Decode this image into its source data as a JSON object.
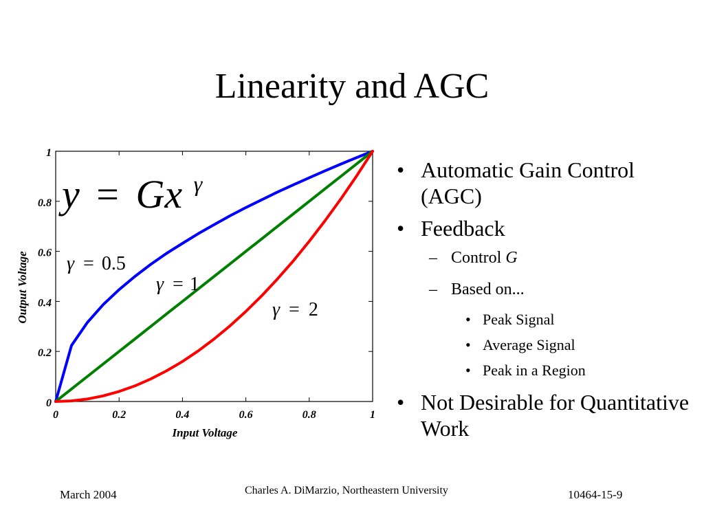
{
  "slide": {
    "title": "Linearity and AGC",
    "bullets": [
      {
        "level": 1,
        "text": "Automatic Gain Control (AGC)"
      },
      {
        "level": 1,
        "text": "Feedback"
      },
      {
        "level": 2,
        "text": "Control ",
        "italic_suffix": "G"
      },
      {
        "level": 2,
        "text": "Based on..."
      },
      {
        "level": 3,
        "text": "Peak Signal"
      },
      {
        "level": 3,
        "text": "Average Signal"
      },
      {
        "level": 3,
        "text": "Peak in a Region"
      },
      {
        "level": 1,
        "text": "Not Desirable for Quantitative Work"
      }
    ],
    "bullet_marks": {
      "level1": "•",
      "level2": "–",
      "level3": "•"
    },
    "footer": {
      "date": "March 2004",
      "author": "Charles A. DiMarzio, Northeastern University",
      "slide_number": "10464-15-9"
    }
  },
  "chart_data": {
    "type": "line",
    "xlabel": "Input Voltage",
    "ylabel": "Output Voltage",
    "xlim": [
      0,
      1
    ],
    "ylim": [
      0,
      1
    ],
    "x_ticks": [
      "0",
      "0.2",
      "0.4",
      "0.6",
      "0.8",
      "1"
    ],
    "y_ticks": [
      "0",
      "0.2",
      "0.4",
      "0.6",
      "0.8",
      "1"
    ],
    "grid": false,
    "formula": {
      "lhs": "y",
      "eq": "=",
      "base": "Gx",
      "exponent": "γ"
    },
    "x": [
      0,
      0.05,
      0.1,
      0.15,
      0.2,
      0.25,
      0.3,
      0.35,
      0.4,
      0.45,
      0.5,
      0.55,
      0.6,
      0.65,
      0.7,
      0.75,
      0.8,
      0.85,
      0.9,
      0.95,
      1
    ],
    "series": [
      {
        "gamma": 0.5,
        "label_gamma": "γ",
        "label_eq": "=",
        "label_value": "0.5",
        "color": "#0000ff",
        "values": [
          0,
          0.224,
          0.316,
          0.387,
          0.447,
          0.5,
          0.548,
          0.592,
          0.632,
          0.671,
          0.707,
          0.742,
          0.775,
          0.806,
          0.837,
          0.866,
          0.894,
          0.922,
          0.949,
          0.975,
          1
        ]
      },
      {
        "gamma": 1,
        "label_gamma": "γ",
        "label_eq": "=",
        "label_value": "1",
        "color": "#008000",
        "values": [
          0,
          0.05,
          0.1,
          0.15,
          0.2,
          0.25,
          0.3,
          0.35,
          0.4,
          0.45,
          0.5,
          0.55,
          0.6,
          0.65,
          0.7,
          0.75,
          0.8,
          0.85,
          0.9,
          0.95,
          1
        ]
      },
      {
        "gamma": 2,
        "label_gamma": "γ",
        "label_eq": "=",
        "label_value": "2",
        "color": "#ff0000",
        "values": [
          0,
          0.0025,
          0.01,
          0.0225,
          0.04,
          0.0625,
          0.09,
          0.1225,
          0.16,
          0.2025,
          0.25,
          0.3025,
          0.36,
          0.4225,
          0.49,
          0.5625,
          0.64,
          0.7225,
          0.81,
          0.9025,
          1
        ]
      }
    ]
  }
}
